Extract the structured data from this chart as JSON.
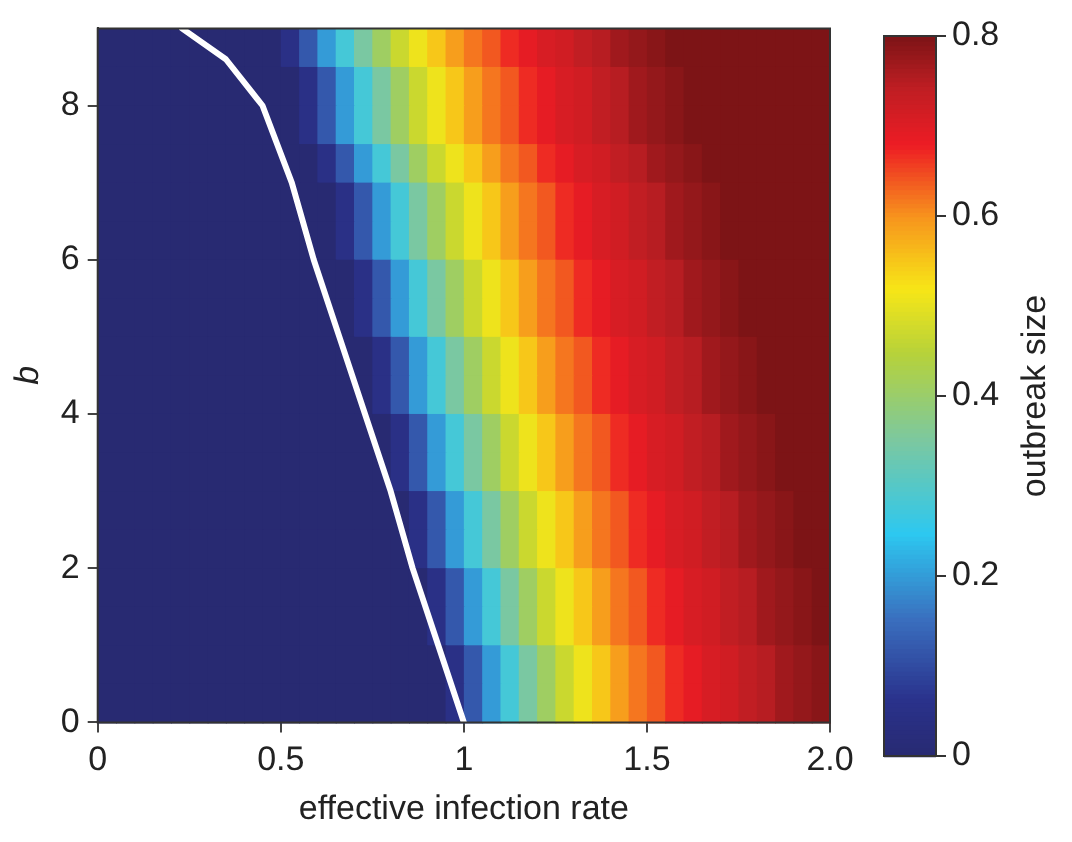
{
  "chart_data": {
    "type": "heatmap",
    "xlabel": "effective infection rate",
    "ylabel": "b",
    "clabel": "outbreak size",
    "xlim": [
      0,
      2
    ],
    "ylim": [
      0,
      9
    ],
    "xticks": [
      0,
      0.5,
      1,
      1.5,
      {
        "value": 2,
        "label": "2.0"
      }
    ],
    "yticks": [
      0,
      2,
      4,
      6,
      8
    ],
    "clim": [
      0,
      0.8
    ],
    "cticks": [
      0,
      0.2,
      0.4,
      0.6,
      0.8
    ],
    "legend": false,
    "cells": [
      [
        0,
        0,
        0,
        0,
        0,
        0,
        0,
        0,
        0,
        0,
        0.05,
        0.12,
        0.2,
        0.28,
        0.35,
        0.41,
        0.47,
        0.51,
        0.55,
        0.59,
        0.62,
        0.64,
        0.67,
        0.69,
        0.71,
        0.72,
        0.74,
        0.75,
        0.77,
        0.78,
        0.79,
        0.8,
        0.8,
        0.8,
        0.8,
        0.8,
        0.8,
        0.8,
        0.8,
        0.8
      ],
      [
        0,
        0,
        0,
        0,
        0,
        0,
        0,
        0,
        0,
        0,
        0,
        0.05,
        0.12,
        0.2,
        0.28,
        0.35,
        0.41,
        0.47,
        0.51,
        0.55,
        0.59,
        0.62,
        0.64,
        0.67,
        0.69,
        0.71,
        0.72,
        0.74,
        0.75,
        0.77,
        0.78,
        0.79,
        0.8,
        0.8,
        0.8,
        0.8,
        0.8,
        0.8,
        0.8,
        0.8
      ],
      [
        0,
        0,
        0,
        0,
        0,
        0,
        0,
        0,
        0,
        0,
        0,
        0.05,
        0.12,
        0.2,
        0.28,
        0.35,
        0.41,
        0.47,
        0.51,
        0.55,
        0.59,
        0.62,
        0.64,
        0.67,
        0.69,
        0.71,
        0.72,
        0.74,
        0.75,
        0.77,
        0.78,
        0.79,
        0.8,
        0.8,
        0.8,
        0.8,
        0.8,
        0.8,
        0.8,
        0.8
      ],
      [
        0,
        0,
        0,
        0,
        0,
        0,
        0,
        0,
        0,
        0,
        0,
        0,
        0.05,
        0.12,
        0.2,
        0.28,
        0.35,
        0.41,
        0.47,
        0.51,
        0.55,
        0.59,
        0.62,
        0.64,
        0.67,
        0.69,
        0.71,
        0.72,
        0.74,
        0.75,
        0.77,
        0.78,
        0.79,
        0.8,
        0.8,
        0.8,
        0.8,
        0.8,
        0.8,
        0.8
      ],
      [
        0,
        0,
        0,
        0,
        0,
        0,
        0,
        0,
        0,
        0,
        0,
        0,
        0,
        0.05,
        0.12,
        0.2,
        0.28,
        0.35,
        0.41,
        0.47,
        0.51,
        0.55,
        0.59,
        0.62,
        0.64,
        0.67,
        0.69,
        0.71,
        0.72,
        0.74,
        0.75,
        0.77,
        0.78,
        0.79,
        0.8,
        0.8,
        0.8,
        0.8,
        0.8,
        0.8
      ],
      [
        0,
        0,
        0,
        0,
        0,
        0,
        0,
        0,
        0,
        0,
        0,
        0,
        0,
        0.05,
        0.12,
        0.2,
        0.28,
        0.35,
        0.41,
        0.47,
        0.51,
        0.55,
        0.59,
        0.62,
        0.64,
        0.67,
        0.69,
        0.71,
        0.72,
        0.74,
        0.75,
        0.77,
        0.78,
        0.79,
        0.8,
        0.8,
        0.8,
        0.8,
        0.8,
        0.8
      ],
      [
        0,
        0,
        0,
        0,
        0,
        0,
        0,
        0,
        0,
        0,
        0,
        0,
        0,
        0,
        0.05,
        0.12,
        0.2,
        0.28,
        0.35,
        0.41,
        0.47,
        0.51,
        0.55,
        0.59,
        0.62,
        0.64,
        0.67,
        0.69,
        0.71,
        0.72,
        0.74,
        0.75,
        0.77,
        0.78,
        0.79,
        0.8,
        0.8,
        0.8,
        0.8,
        0.8
      ],
      [
        0,
        0,
        0,
        0,
        0,
        0,
        0,
        0,
        0,
        0,
        0,
        0,
        0,
        0,
        0.05,
        0.12,
        0.2,
        0.28,
        0.35,
        0.41,
        0.47,
        0.51,
        0.55,
        0.59,
        0.62,
        0.64,
        0.67,
        0.69,
        0.71,
        0.72,
        0.74,
        0.75,
        0.77,
        0.78,
        0.79,
        0.8,
        0.8,
        0.8,
        0.8,
        0.8
      ],
      [
        0,
        0,
        0,
        0,
        0,
        0,
        0,
        0,
        0,
        0,
        0,
        0,
        0,
        0,
        0,
        0.05,
        0.12,
        0.2,
        0.28,
        0.35,
        0.41,
        0.47,
        0.51,
        0.55,
        0.59,
        0.62,
        0.64,
        0.67,
        0.69,
        0.71,
        0.72,
        0.74,
        0.75,
        0.77,
        0.78,
        0.79,
        0.8,
        0.8,
        0.8,
        0.8
      ],
      [
        0,
        0,
        0,
        0,
        0,
        0,
        0,
        0,
        0,
        0,
        0,
        0,
        0,
        0,
        0,
        0.05,
        0.12,
        0.2,
        0.28,
        0.35,
        0.41,
        0.47,
        0.51,
        0.55,
        0.59,
        0.62,
        0.64,
        0.67,
        0.69,
        0.71,
        0.72,
        0.74,
        0.75,
        0.77,
        0.78,
        0.79,
        0.8,
        0.8,
        0.8,
        0.8
      ],
      [
        0,
        0,
        0,
        0,
        0,
        0,
        0,
        0,
        0,
        0,
        0,
        0,
        0,
        0,
        0,
        0,
        0.05,
        0.12,
        0.2,
        0.28,
        0.35,
        0.41,
        0.47,
        0.51,
        0.55,
        0.59,
        0.62,
        0.64,
        0.67,
        0.69,
        0.71,
        0.72,
        0.74,
        0.75,
        0.77,
        0.78,
        0.79,
        0.8,
        0.8,
        0.8
      ],
      [
        0,
        0,
        0,
        0,
        0,
        0,
        0,
        0,
        0,
        0,
        0,
        0,
        0,
        0,
        0,
        0,
        0.05,
        0.12,
        0.2,
        0.28,
        0.35,
        0.41,
        0.47,
        0.51,
        0.55,
        0.59,
        0.62,
        0.64,
        0.67,
        0.69,
        0.71,
        0.72,
        0.74,
        0.75,
        0.77,
        0.78,
        0.79,
        0.8,
        0.8,
        0.8
      ],
      [
        0,
        0,
        0,
        0,
        0,
        0,
        0,
        0,
        0,
        0,
        0,
        0,
        0,
        0,
        0,
        0,
        0,
        0.05,
        0.12,
        0.2,
        0.28,
        0.35,
        0.41,
        0.47,
        0.51,
        0.55,
        0.59,
        0.62,
        0.64,
        0.67,
        0.69,
        0.71,
        0.72,
        0.74,
        0.75,
        0.77,
        0.78,
        0.79,
        0.8,
        0.8
      ],
      [
        0,
        0,
        0,
        0,
        0,
        0,
        0,
        0,
        0,
        0,
        0,
        0,
        0,
        0,
        0,
        0,
        0,
        0.05,
        0.12,
        0.2,
        0.28,
        0.35,
        0.41,
        0.47,
        0.51,
        0.55,
        0.59,
        0.62,
        0.64,
        0.67,
        0.69,
        0.71,
        0.72,
        0.74,
        0.75,
        0.77,
        0.78,
        0.79,
        0.8,
        0.8
      ],
      [
        0,
        0,
        0,
        0,
        0,
        0,
        0,
        0,
        0,
        0,
        0,
        0,
        0,
        0,
        0,
        0,
        0,
        0,
        0.05,
        0.12,
        0.2,
        0.28,
        0.35,
        0.41,
        0.47,
        0.51,
        0.55,
        0.59,
        0.62,
        0.64,
        0.67,
        0.69,
        0.71,
        0.72,
        0.74,
        0.75,
        0.77,
        0.78,
        0.79,
        0.8
      ],
      [
        0,
        0,
        0,
        0,
        0,
        0,
        0,
        0,
        0,
        0,
        0,
        0,
        0,
        0,
        0,
        0,
        0,
        0,
        0.05,
        0.12,
        0.2,
        0.28,
        0.35,
        0.41,
        0.47,
        0.51,
        0.55,
        0.59,
        0.62,
        0.64,
        0.67,
        0.69,
        0.71,
        0.72,
        0.74,
        0.75,
        0.77,
        0.78,
        0.79,
        0.8
      ],
      [
        0,
        0,
        0,
        0,
        0,
        0,
        0,
        0,
        0,
        0,
        0,
        0,
        0,
        0,
        0,
        0,
        0,
        0,
        0,
        0.05,
        0.12,
        0.2,
        0.28,
        0.35,
        0.41,
        0.47,
        0.51,
        0.55,
        0.59,
        0.62,
        0.64,
        0.67,
        0.69,
        0.71,
        0.72,
        0.74,
        0.75,
        0.77,
        0.78,
        0.79
      ],
      [
        0,
        0,
        0,
        0,
        0,
        0,
        0,
        0,
        0,
        0,
        0,
        0,
        0,
        0,
        0,
        0,
        0,
        0,
        0,
        0.05,
        0.12,
        0.2,
        0.28,
        0.35,
        0.41,
        0.47,
        0.51,
        0.55,
        0.59,
        0.62,
        0.64,
        0.67,
        0.69,
        0.71,
        0.72,
        0.74,
        0.75,
        0.77,
        0.78,
        0.79
      ]
    ],
    "series": [
      {
        "type": "line",
        "color": "#ffffff",
        "x": [
          1.0,
          0.93,
          0.86,
          0.8,
          0.73,
          0.66,
          0.59,
          0.53,
          0.45,
          0.35,
          0.23
        ],
        "values": [
          0,
          1,
          2,
          3,
          4,
          5,
          6,
          7,
          8,
          8.6,
          9
        ]
      }
    ]
  }
}
